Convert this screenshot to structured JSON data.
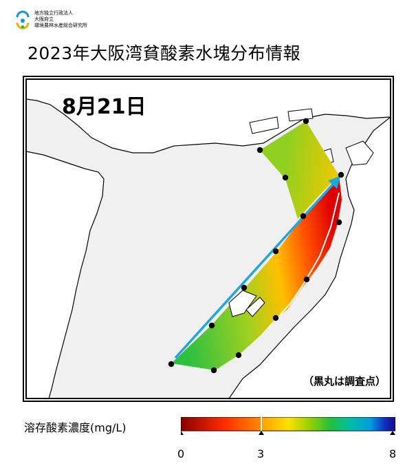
{
  "org": {
    "line1": "地方独立行政法人",
    "line2": "大阪府立",
    "line3": "環境農林水産総合研究所"
  },
  "title": "2023年大阪湾貧酸素水塊分布情報",
  "map": {
    "date": "8月21日",
    "note": "（黒丸は調査点）",
    "survey_point_count": 15
  },
  "legend": {
    "label": "溶存酸素濃度(mg/L)",
    "ticks": [
      "0",
      "3",
      "8"
    ],
    "colors": [
      "#8a0000",
      "#ff2a00",
      "#ffa000",
      "#ffe000",
      "#9ad000",
      "#20c040",
      "#00c0a0",
      "#00a0e0",
      "#1030c0",
      "#1a0890"
    ]
  },
  "colors": {
    "land": "#ffffff",
    "sea": "#f0f0f0",
    "arrow": "#1ea6e0"
  }
}
